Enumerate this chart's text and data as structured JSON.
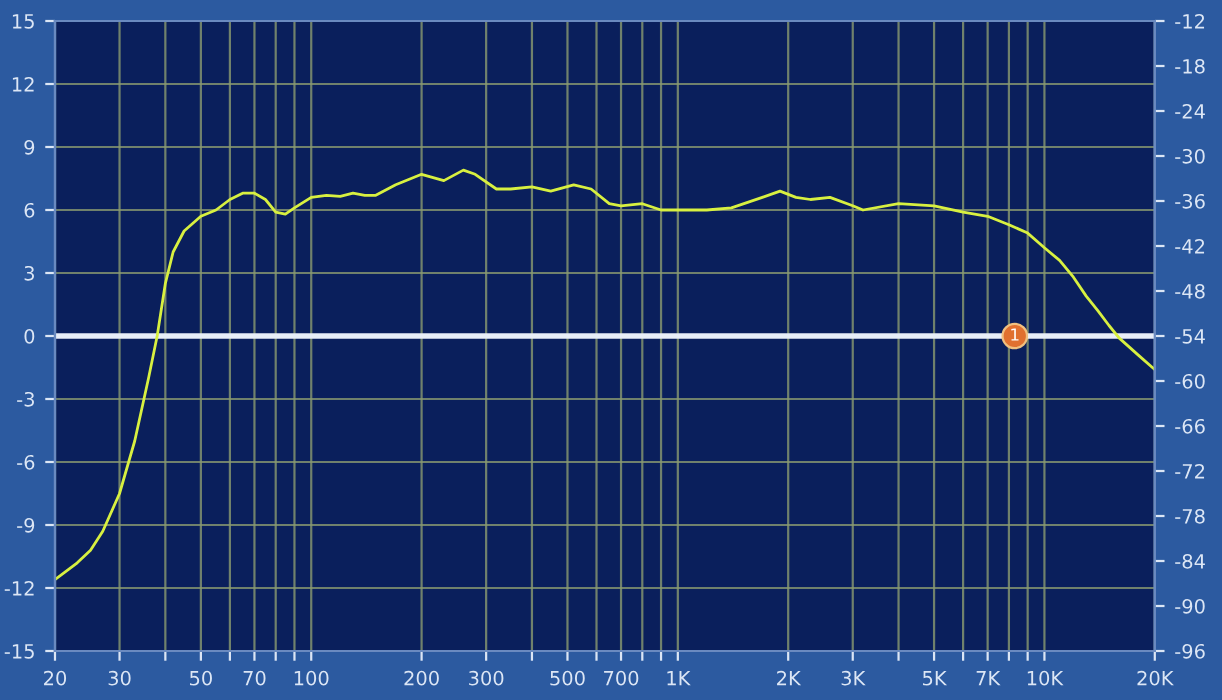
{
  "chart_data": {
    "type": "line",
    "x": [
      20,
      23,
      25,
      27,
      30,
      33,
      36,
      38,
      40,
      42,
      45,
      50,
      55,
      60,
      65,
      70,
      75,
      80,
      85,
      90,
      100,
      110,
      120,
      130,
      140,
      150,
      170,
      200,
      230,
      260,
      280,
      320,
      350,
      400,
      450,
      520,
      580,
      650,
      700,
      800,
      900,
      1000,
      1200,
      1400,
      1700,
      1900,
      2100,
      2300,
      2600,
      3000,
      3200,
      4000,
      5000,
      6000,
      7000,
      8000,
      9000,
      10000,
      11000,
      12000,
      13000,
      14000,
      15000,
      16000,
      18000,
      20000
    ],
    "series": [
      {
        "color": "#d8f040",
        "values": [
          -11.6,
          -10.8,
          -10.2,
          -9.3,
          -7.5,
          -5,
          -2,
          0,
          2.5,
          4,
          5,
          5.7,
          6,
          6.5,
          6.8,
          6.8,
          6.5,
          5.9,
          5.8,
          6.1,
          6.6,
          6.7,
          6.65,
          6.8,
          6.7,
          6.7,
          7.2,
          7.7,
          7.4,
          7.9,
          7.7,
          7.0,
          7.0,
          7.1,
          6.9,
          7.2,
          7.0,
          6.3,
          6.2,
          6.3,
          6.0,
          6.0,
          6.0,
          6.1,
          6.6,
          6.9,
          6.6,
          6.5,
          6.6,
          6.2,
          6.0,
          6.3,
          6.2,
          5.9,
          5.7,
          5.3,
          4.9,
          4.2,
          3.6,
          2.8,
          1.9,
          1.2,
          0.5,
          -0.1,
          -0.9,
          -1.6
        ]
      }
    ],
    "log": "x",
    "xlim": [
      20,
      20000
    ],
    "xticks": [
      20,
      30,
      {
        "value": 40,
        "label": null
      },
      50,
      {
        "value": 60,
        "label": null
      },
      70,
      {
        "value": 80,
        "label": null
      },
      {
        "value": 90,
        "label": null
      },
      100,
      200,
      300,
      {
        "value": 400,
        "label": null
      },
      500,
      {
        "value": 600,
        "label": null
      },
      700,
      {
        "value": 800,
        "label": null
      },
      {
        "value": 900,
        "label": null
      },
      {
        "value": 1000,
        "label": "1K"
      },
      {
        "value": 2000,
        "label": "2K"
      },
      {
        "value": 3000,
        "label": "3K"
      },
      {
        "value": 4000,
        "label": null
      },
      {
        "value": 5000,
        "label": "5K"
      },
      {
        "value": 6000,
        "label": null
      },
      {
        "value": 7000,
        "label": "7K"
      },
      {
        "value": 8000,
        "label": null
      },
      {
        "value": 9000,
        "label": null
      },
      {
        "value": 10000,
        "label": "10K"
      },
      {
        "value": 20000,
        "label": "20K"
      }
    ],
    "ylim": [
      -15,
      15
    ],
    "yticks": [
      -15,
      -12,
      -9,
      -6,
      -3,
      0,
      3,
      6,
      9,
      12,
      15
    ],
    "y2lim": [
      -96,
      -12
    ],
    "y2ticks": [
      -96,
      -90,
      -84,
      -78,
      -72,
      -66,
      -60,
      -54,
      -48,
      -42,
      -36,
      -30,
      -24,
      -18,
      -12
    ],
    "ref_lines": [
      {
        "axis": "y",
        "value": 0,
        "color": "#e8eef8"
      }
    ],
    "annotations": [
      {
        "text": "1",
        "x": 8300,
        "y": 0
      }
    ],
    "grid": true,
    "marker": "none",
    "line_style": "solid"
  }
}
